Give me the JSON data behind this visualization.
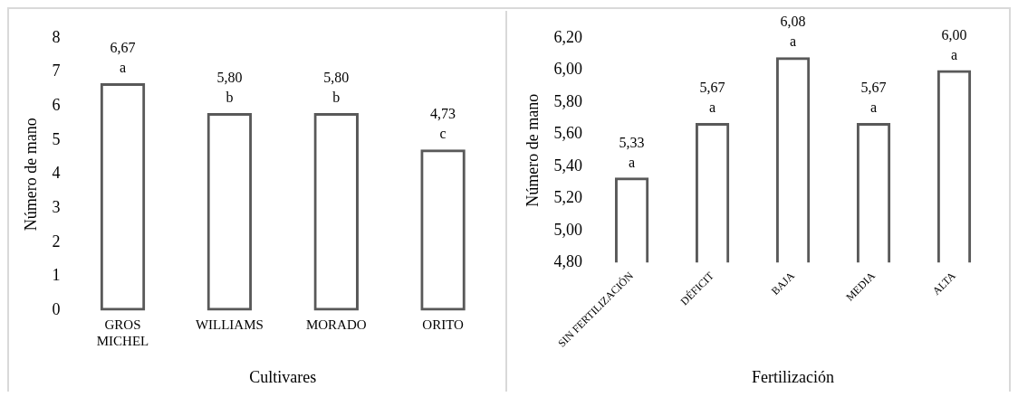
{
  "chart_data": [
    {
      "type": "bar",
      "categories": [
        "GROS MICHEL",
        "WILLIAMS",
        "MORADO",
        "ORITO"
      ],
      "values": [
        6.67,
        5.8,
        5.8,
        4.73
      ],
      "value_labels": [
        "6,67",
        "5,80",
        "5,80",
        "4,73"
      ],
      "color": "#595959",
      "xlabel": "Cultivares",
      "ylabel": "Número de mano",
      "ylim": [
        0,
        8
      ],
      "yticks": [
        0,
        1,
        2,
        3,
        4,
        5,
        6,
        7,
        8
      ],
      "grid": false,
      "annotations": [
        {
          "text": "a",
          "x": "GROS MICHEL",
          "y": 6.67
        },
        {
          "text": "b",
          "x": "WILLIAMS",
          "y": 5.8
        },
        {
          "text": "b",
          "x": "MORADO",
          "y": 5.8
        },
        {
          "text": "c",
          "x": "ORITO",
          "y": 4.73
        }
      ]
    },
    {
      "type": "bar",
      "categories": [
        "SIN FERTILIZACIÓN",
        "DÉFICIT",
        "BAJA",
        "MEDIA",
        "ALTA"
      ],
      "values": [
        5.33,
        5.67,
        6.08,
        5.67,
        6.0
      ],
      "value_labels": [
        "5,33",
        "5,67",
        "6,08",
        "5,67",
        "6,00"
      ],
      "color": "#595959",
      "xlabel": "Fertilización",
      "ylabel": "Número de mano",
      "ylim": [
        4.8,
        6.2
      ],
      "yticks": [
        {
          "value": 4.8,
          "label": "4,80"
        },
        {
          "value": 5.0,
          "label": "5,00"
        },
        {
          "value": 5.2,
          "label": "5,20"
        },
        {
          "value": 5.4,
          "label": "5,40"
        },
        {
          "value": 5.6,
          "label": "5,60"
        },
        {
          "value": 5.8,
          "label": "5,80"
        },
        {
          "value": 6.0,
          "label": "6,00"
        },
        {
          "value": 6.2,
          "label": "6,20"
        }
      ],
      "grid": false,
      "annotations": [
        {
          "text": "a",
          "x": "SIN FERTILIZACIÓN",
          "y": 5.33
        },
        {
          "text": "a",
          "x": "DÉFICIT",
          "y": 5.67
        },
        {
          "text": "a",
          "x": "BAJA",
          "y": 6.08
        },
        {
          "text": "a",
          "x": "MEDIA",
          "y": 5.67
        },
        {
          "text": "a",
          "x": "ALTA",
          "y": 6.0
        }
      ]
    }
  ]
}
